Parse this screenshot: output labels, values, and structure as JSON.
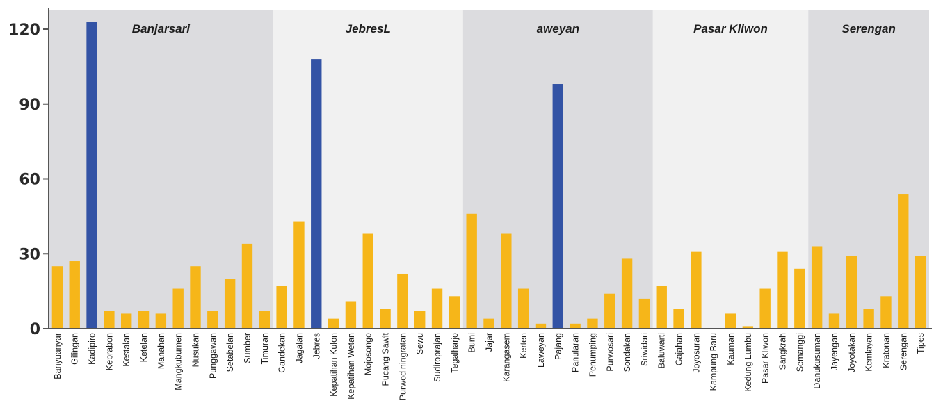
{
  "chart_data": {
    "type": "bar",
    "ylim": [
      0,
      120
    ],
    "yticks": [
      "0",
      "30",
      "60",
      "90",
      "120"
    ],
    "grid": false,
    "regions": [
      {
        "label": "Banjarsari",
        "start": 0,
        "end": 13
      },
      {
        "label": "JebresL",
        "start": 13,
        "end": 24
      },
      {
        "label": "aweyan",
        "start": 24,
        "end": 35
      },
      {
        "label": "Pasar Kliwon",
        "start": 35,
        "end": 44
      },
      {
        "label": "Serengan",
        "start": 44,
        "end": 51
      }
    ],
    "categories": [
      "Banyuanyar",
      "Gilingan",
      "Kadipiro",
      "Keprabon",
      "Kestalan",
      "Ketelan",
      "Manahan",
      "Mangkubumen",
      "Nusukan",
      "Punggawan",
      "Setabelan",
      "Sumber",
      "Timuran",
      "Gandekan",
      "Jagalan",
      "Jebres",
      "Kepatihan Kulon",
      "Kepatihan Wetan",
      "Mojosongo",
      "Pucang Sawit",
      "Purwodiningratan",
      "Sewu",
      "Sudiroprajan",
      "Tegalharjo",
      "Bumi",
      "Jajar",
      "Karangasem",
      "Kerten",
      "Laweyan",
      "Pajang",
      "Panularan",
      "Penumping",
      "Purwosari",
      "Sondakan",
      "Sriwidari",
      "Baluwarti",
      "Gajahan",
      "Joyosuran",
      "Kampung Baru",
      "Kauman",
      "Kedung Lumbu",
      "Pasar Kliwon",
      "Sangkrah",
      "Semanggi",
      "Danukusuman",
      "Jayengan",
      "Joyotakan",
      "Kemlayan",
      "Kratonan",
      "Serengan",
      "Tipes"
    ],
    "values": [
      25,
      27,
      123,
      7,
      6,
      7,
      6,
      16,
      25,
      7,
      20,
      34,
      7,
      17,
      43,
      108,
      4,
      11,
      38,
      8,
      22,
      7,
      16,
      13,
      46,
      4,
      38,
      16,
      2,
      98,
      2,
      4,
      14,
      28,
      12,
      17,
      8,
      31,
      0,
      6,
      1,
      16,
      31,
      24,
      33,
      6,
      29,
      8,
      13,
      54,
      29
    ],
    "highlighted": [
      "Kadipiro",
      "Jebres",
      "Pajang"
    ],
    "colors": {
      "bar": "#f6b619",
      "highlight": "#3353a5",
      "region_dark": "#dcdcdf",
      "region_light": "#f1f1f1",
      "axis": "#555555"
    }
  }
}
